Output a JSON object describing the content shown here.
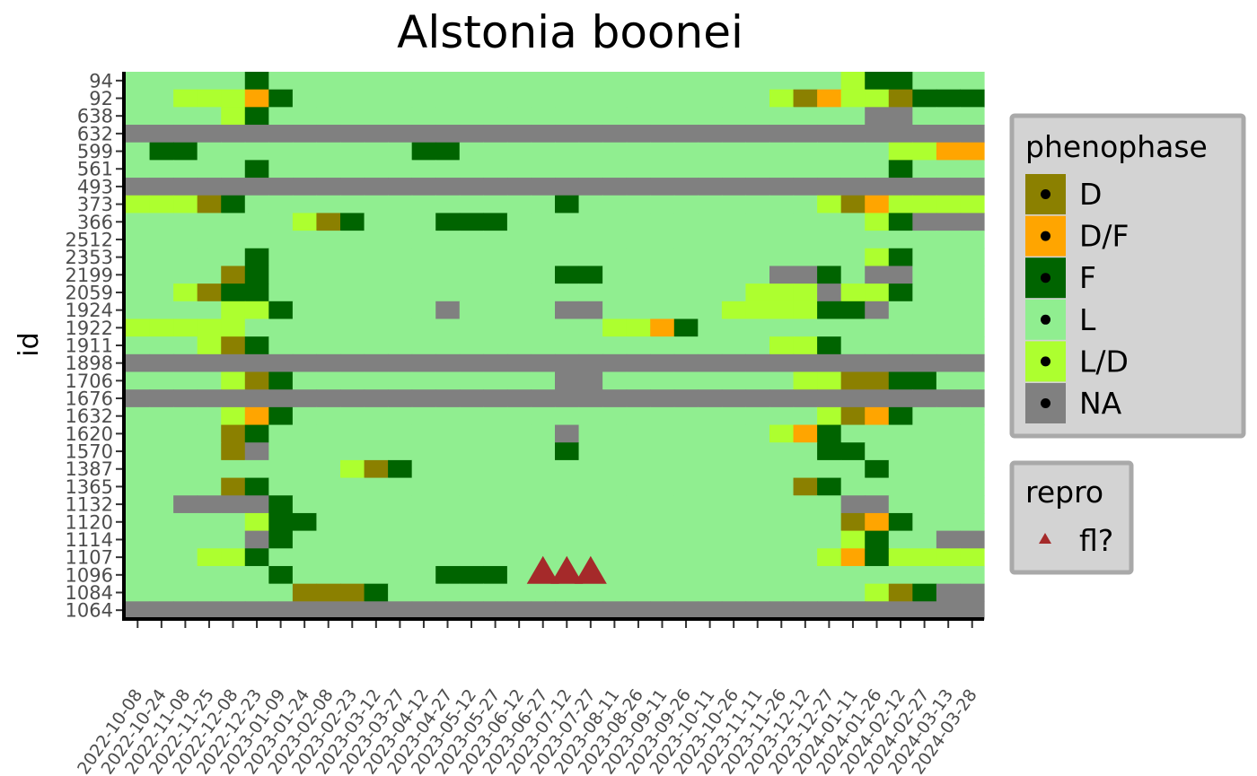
{
  "chart_data": {
    "type": "heatmap",
    "title": "Alstonia boonei",
    "ylabel": "id",
    "xlabel": "",
    "ids": [
      "94",
      "92",
      "638",
      "632",
      "599",
      "561",
      "493",
      "373",
      "366",
      "2512",
      "2353",
      "2199",
      "2059",
      "1924",
      "1922",
      "1911",
      "1898",
      "1706",
      "1676",
      "1632",
      "1620",
      "1570",
      "1387",
      "1365",
      "1132",
      "1120",
      "1114",
      "1107",
      "1096",
      "1084",
      "1064"
    ],
    "dates": [
      "2022-10-08",
      "2022-10-24",
      "2022-11-08",
      "2022-11-25",
      "2022-12-08",
      "2022-12-23",
      "2023-01-09",
      "2023-01-24",
      "2023-02-08",
      "2023-02-23",
      "2023-03-12",
      "2023-03-27",
      "2023-04-12",
      "2023-04-27",
      "2023-05-12",
      "2023-05-27",
      "2023-06-12",
      "2023-06-27",
      "2023-07-12",
      "2023-07-27",
      "2023-08-11",
      "2023-08-26",
      "2023-09-11",
      "2023-09-26",
      "2023-10-11",
      "2023-10-26",
      "2023-11-11",
      "2023-11-26",
      "2023-12-12",
      "2023-12-27",
      "2024-01-11",
      "2024-01-26",
      "2024-02-12",
      "2024-02-27",
      "2024-03-13",
      "2024-03-28"
    ],
    "code_legend": {
      "D": "D",
      "O": "D/F",
      "F": "F",
      "L": "L",
      "Y": "L/D",
      "N": "NA"
    },
    "phenophase_rows": [
      "LLLLLFLLLLLLLLLLLLLLLLLLLLLLLLYFFLLL",
      "LLYYYOFLLLLLLLLLLLLLLLLLLLLYDOYYDFFF",
      "LLLLYFLLLLLLLLLLLLLLLLLLLLLLLLLNNLLL",
      "NNNNNNNNNNNNNNNNNNNNNNNNNNNNNNNNNNNN",
      "LFFLLLLLLLLLFFLLLLLLLLLLLLLLLLLLYYOO",
      "LLLLLFLLLLLLLLLLLLLLLLLLLLLLLLLLFLLL",
      "NNNNNNNNNNNNNNNNNNNNNNNNNNNNNNNNNNNN",
      "YYYDFLLLLLLLLLLLLLFLLLLLLLLLLYDOYYYY",
      "LLLLLLLYDFLLLFFFLLLLLLLLLLLLLLLYFNNN",
      "LLLLLLLLLLLLLLLLLLLLLLLLLLLLLLLLLLLL",
      "LLLLLFLLLLLLLLLLLLLLLLLLLLLLLLLYFLLL",
      "LLLLDFLLLLLLLLLLLLFFLLLLLLLNNFLNNLLL",
      "LLYDFFLLLLLLLLLLLLLLLLLLLLYYYNYYFLLL",
      "LLLLYYFLLLLLLNLLLLNNLLLLLYYYYFFNLLLL",
      "YYYYYLLLLLLLLLLLLLLLYYOFLLLLLLLLLLLL",
      "LLLYDFLLLLLLLLLLLLLLLLLLLLLYYFLLLLLL",
      "NNNNNNNNNNNNNNNNNNNNNNNNNNNNNNNNNNNN",
      "LLLLYDFLLLLLLLLLLLNNLLLLLLLLYYDDFFLL",
      "NNNNNNNNNNNNNNNNNNNNNNNNNNNNNNNNNNNN",
      "LLLLYOFLLLLLLLLLLLLLLLLLLLLLLYDOFLLL",
      "LLLLDFLLLLLLLLLLLLNLLLLLLLLYOFLLLLLL",
      "LLLLDNLLLLLLLLLLLLFLLLLLLLLLLFFLLLLL",
      "LLLLLLLLLYDFLLLLLLLLLLLLLLLLLLLFLLLL",
      "LLLLDFLLLLLLLLLLLLLLLLLLLLLLDFLLLLLL",
      "LLNNNNFLLLLLLLLLLLLLLLLLLLLLLLNNLLLL",
      "LLLLLYFFLLLLLLLLLLLLLLLLLLLLLLDOFLLL",
      "LLLLLNFLLLLLLLLLLLLLLLLLLLLLLLYFLLNN",
      "LLLYYFLLLLLLLLLLLLLLLLLLLLLLLYOFYYYY",
      "LLLLLLFLLLLLLFFFLLLLLLLLLLLLLLLLLLLL",
      "LLLLLLLDDDFLLLLLLLLLLLLLLLLLLLLYDFNN",
      "NNNNNNNNNNNNNNNNNNNNNNNNNNNNNNNNNNNN"
    ],
    "repro_points": [
      {
        "id": "1096",
        "date": "2023-06-27",
        "value": "fl?"
      },
      {
        "id": "1096",
        "date": "2023-07-12",
        "value": "fl?"
      },
      {
        "id": "1096",
        "date": "2023-07-27",
        "value": "fl?"
      }
    ],
    "colors": {
      "D": "#8b8000",
      "O": "#ffa500",
      "F": "#006400",
      "L": "#90ee90",
      "Y": "#adff2f",
      "N": "#808080",
      "repro": "#a52a2a",
      "legend_bg": "#d3d3d3",
      "legend_border": "#a9a9a9"
    },
    "legends": [
      {
        "title": "phenophase",
        "position": "right",
        "entries": [
          {
            "label": "D",
            "code": "D"
          },
          {
            "label": "D/F",
            "code": "O"
          },
          {
            "label": "F",
            "code": "F"
          },
          {
            "label": "L",
            "code": "L"
          },
          {
            "label": "L/D",
            "code": "Y"
          },
          {
            "label": "NA",
            "code": "N"
          }
        ]
      },
      {
        "title": "repro",
        "position": "right",
        "entries": [
          {
            "label": "fl?",
            "code": "repro"
          }
        ]
      }
    ],
    "grid": false
  }
}
